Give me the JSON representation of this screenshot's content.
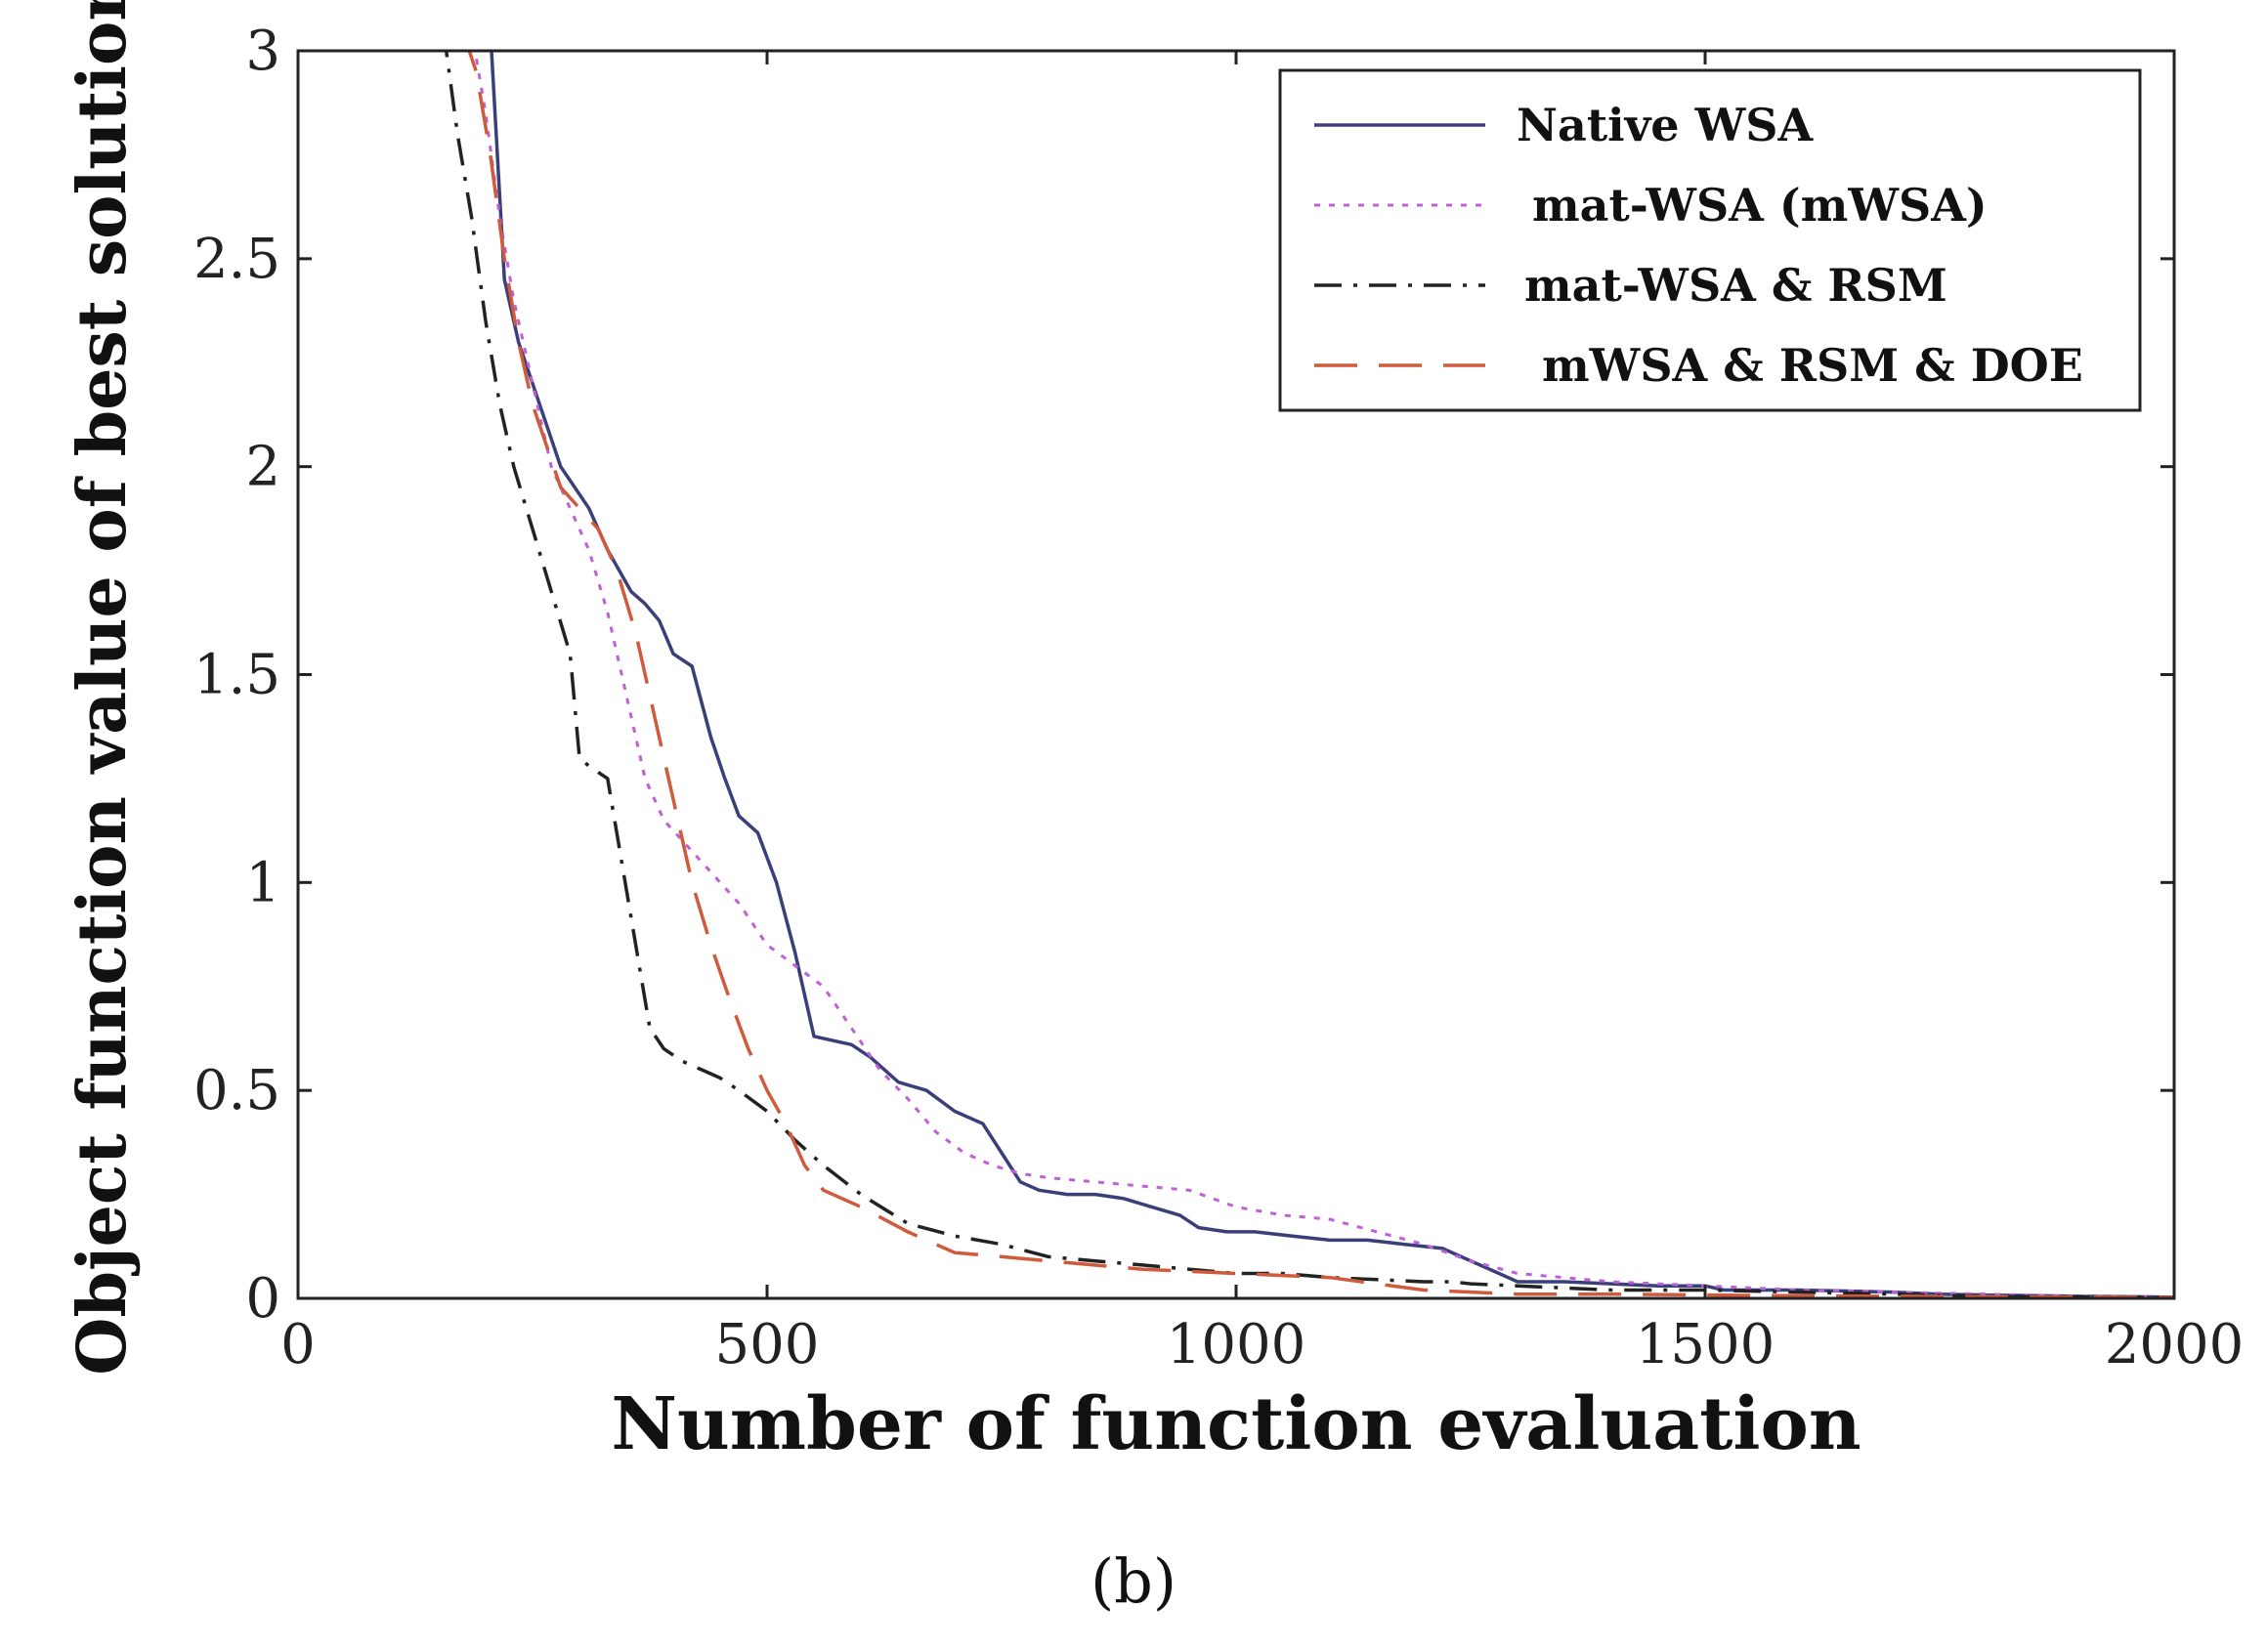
{
  "chart_data": {
    "type": "line",
    "title": "",
    "xlabel": "Number of function evaluation",
    "ylabel": "Object function value of best solution",
    "xlim": [
      0,
      2000
    ],
    "ylim": [
      0,
      3
    ],
    "xticks": [
      0,
      500,
      1000,
      1500,
      2000
    ],
    "xtick_labels": [
      "0",
      "500",
      "1000",
      "1500",
      "2000"
    ],
    "yticks": [
      0,
      0.5,
      1,
      1.5,
      2,
      2.5,
      3
    ],
    "ytick_labels": [
      "0",
      "0.5",
      "1",
      "1.5",
      "2",
      "2.5",
      "3"
    ],
    "grid": false,
    "legend_position": "top-right",
    "caption": "(b)",
    "series": [
      {
        "name": "Native WSA",
        "color": "#3a3f7a",
        "dash": "solid",
        "x": [
          205,
          220,
          235,
          250,
          265,
          280,
          295,
          310,
          330,
          355,
          370,
          385,
          400,
          420,
          440,
          455,
          470,
          490,
          510,
          530,
          550,
          570,
          590,
          610,
          640,
          670,
          700,
          730,
          750,
          770,
          790,
          820,
          850,
          880,
          910,
          940,
          960,
          990,
          1020,
          1060,
          1100,
          1140,
          1180,
          1220,
          1240,
          1260,
          1290,
          1300,
          1350,
          1400,
          1450,
          1500,
          1520,
          1600,
          1700,
          1750,
          1800,
          1900,
          2000
        ],
        "y": [
          3.05,
          2.45,
          2.3,
          2.2,
          2.1,
          2.0,
          1.95,
          1.9,
          1.8,
          1.7,
          1.67,
          1.63,
          1.55,
          1.52,
          1.35,
          1.25,
          1.16,
          1.12,
          1.0,
          0.83,
          0.63,
          0.62,
          0.61,
          0.58,
          0.52,
          0.5,
          0.45,
          0.42,
          0.35,
          0.28,
          0.26,
          0.25,
          0.25,
          0.24,
          0.22,
          0.2,
          0.17,
          0.16,
          0.16,
          0.15,
          0.14,
          0.14,
          0.13,
          0.12,
          0.1,
          0.08,
          0.05,
          0.04,
          0.04,
          0.035,
          0.03,
          0.03,
          0.02,
          0.02,
          0.015,
          0.01,
          0.008,
          0.005,
          0.003
        ]
      },
      {
        "name": "mat-WSA (mWSA)",
        "color": "#c060d8",
        "dash": "dotted",
        "x": [
          185,
          200,
          215,
          230,
          250,
          270,
          290,
          310,
          330,
          350,
          370,
          390,
          410,
          430,
          450,
          470,
          500,
          530,
          560,
          590,
          620,
          650,
          680,
          710,
          740,
          770,
          800,
          850,
          900,
          950,
          1000,
          1050,
          1100,
          1150,
          1200,
          1250,
          1300,
          1400,
          1500,
          1600,
          1700,
          1800,
          1900,
          2000
        ],
        "y": [
          3.05,
          2.85,
          2.6,
          2.4,
          2.2,
          2.0,
          1.9,
          1.8,
          1.65,
          1.45,
          1.25,
          1.15,
          1.1,
          1.05,
          1.0,
          0.95,
          0.85,
          0.8,
          0.75,
          0.65,
          0.55,
          0.48,
          0.4,
          0.35,
          0.32,
          0.3,
          0.29,
          0.28,
          0.27,
          0.26,
          0.22,
          0.2,
          0.19,
          0.16,
          0.13,
          0.09,
          0.06,
          0.04,
          0.03,
          0.02,
          0.015,
          0.01,
          0.005,
          0.003
        ]
      },
      {
        "name": "mat-WSA & RSM",
        "color": "#222222",
        "dash": "dashdot",
        "x": [
          155,
          170,
          185,
          200,
          215,
          230,
          250,
          270,
          290,
          300,
          310,
          330,
          345,
          360,
          375,
          390,
          410,
          430,
          450,
          470,
          500,
          530,
          560,
          600,
          650,
          700,
          750,
          800,
          850,
          900,
          950,
          1000,
          1050,
          1100,
          1150,
          1200,
          1230,
          1250,
          1300,
          1400,
          1500,
          1600,
          1700,
          1800,
          1900,
          2000
        ],
        "y": [
          3.05,
          2.8,
          2.6,
          2.35,
          2.15,
          2.0,
          1.85,
          1.7,
          1.55,
          1.3,
          1.28,
          1.25,
          1.05,
          0.85,
          0.65,
          0.6,
          0.57,
          0.55,
          0.53,
          0.5,
          0.45,
          0.38,
          0.32,
          0.25,
          0.18,
          0.15,
          0.13,
          0.1,
          0.09,
          0.08,
          0.07,
          0.06,
          0.06,
          0.05,
          0.045,
          0.04,
          0.04,
          0.035,
          0.03,
          0.02,
          0.02,
          0.015,
          0.01,
          0.005,
          0.003,
          0.002
        ]
      },
      {
        "name": "mWSA & RSM & DOE",
        "color": "#d05a3c",
        "dash": "longdash",
        "x": [
          175,
          190,
          205,
          220,
          235,
          250,
          265,
          280,
          300,
          320,
          340,
          360,
          380,
          400,
          420,
          440,
          460,
          480,
          500,
          520,
          540,
          560,
          600,
          650,
          700,
          750,
          800,
          900,
          1000,
          1100,
          1200,
          1300,
          1400,
          1500,
          1600,
          1700,
          1800,
          1900,
          2000
        ],
        "y": [
          3.05,
          2.95,
          2.75,
          2.5,
          2.3,
          2.15,
          2.05,
          1.95,
          1.9,
          1.85,
          1.75,
          1.6,
          1.4,
          1.2,
          1.0,
          0.85,
          0.72,
          0.6,
          0.5,
          0.42,
          0.32,
          0.26,
          0.22,
          0.16,
          0.11,
          0.1,
          0.09,
          0.07,
          0.06,
          0.05,
          0.02,
          0.01,
          0.01,
          0.008,
          0.006,
          0.005,
          0.004,
          0.003,
          0.002
        ]
      }
    ]
  }
}
